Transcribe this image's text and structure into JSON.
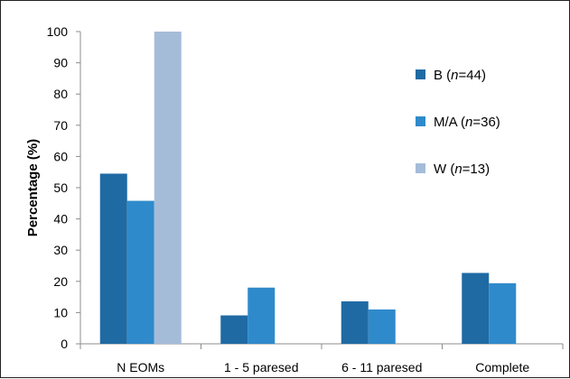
{
  "chart_data": {
    "type": "bar",
    "title": "",
    "xlabel": "",
    "ylabel": "Percentage (%)",
    "ylim": [
      0,
      100
    ],
    "yticks": [
      0,
      10,
      20,
      30,
      40,
      50,
      60,
      70,
      80,
      90,
      100
    ],
    "grid": false,
    "legend_position": "right",
    "categories": [
      "N EOMs",
      "1 - 5 paresed",
      "6 - 11 paresed",
      "Complete"
    ],
    "series": [
      {
        "name": "B (n=44)",
        "legend_prefix": "B (",
        "legend_italic": "n",
        "legend_suffix": "=44)",
        "color": "#1F6AA3",
        "values": [
          54.5,
          9.1,
          13.6,
          22.7
        ]
      },
      {
        "name": "M/A (n=36)",
        "legend_prefix": "M/A (",
        "legend_italic": "n",
        "legend_suffix": "=36)",
        "color": "#2F8ACB",
        "values": [
          45.8,
          18.0,
          11.0,
          19.4
        ]
      },
      {
        "name": "W (n=13)",
        "legend_prefix": "W (",
        "legend_italic": "n",
        "legend_suffix": "=13)",
        "color": "#A5BCD9",
        "values": [
          100,
          0,
          0,
          0
        ]
      }
    ]
  }
}
